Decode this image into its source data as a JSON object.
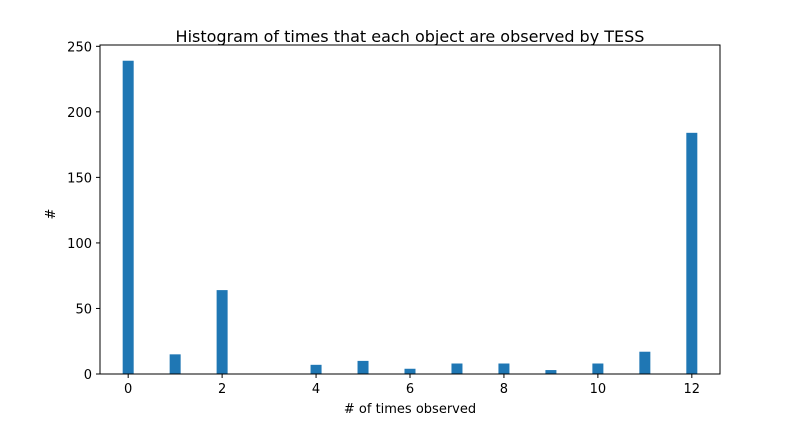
{
  "chart_data": {
    "type": "bar",
    "title": "Histogram of times that each object are observed by TESS",
    "xlabel": "# of times observed",
    "ylabel": "#",
    "xlim": [
      -0.6,
      12.6
    ],
    "ylim": [
      0,
      251
    ],
    "xticks": [
      0,
      2,
      4,
      6,
      8,
      10,
      12
    ],
    "yticks": [
      0,
      50,
      100,
      150,
      200,
      250
    ],
    "grid": false,
    "legend": "none",
    "bar_color": "#1f77b4",
    "series": [
      {
        "x": [
          0,
          1,
          2,
          4,
          5,
          6,
          7,
          8,
          9,
          10,
          11,
          12
        ],
        "values": [
          239,
          15,
          64,
          7,
          10,
          4,
          8,
          8,
          3,
          8,
          17,
          184
        ]
      }
    ]
  }
}
